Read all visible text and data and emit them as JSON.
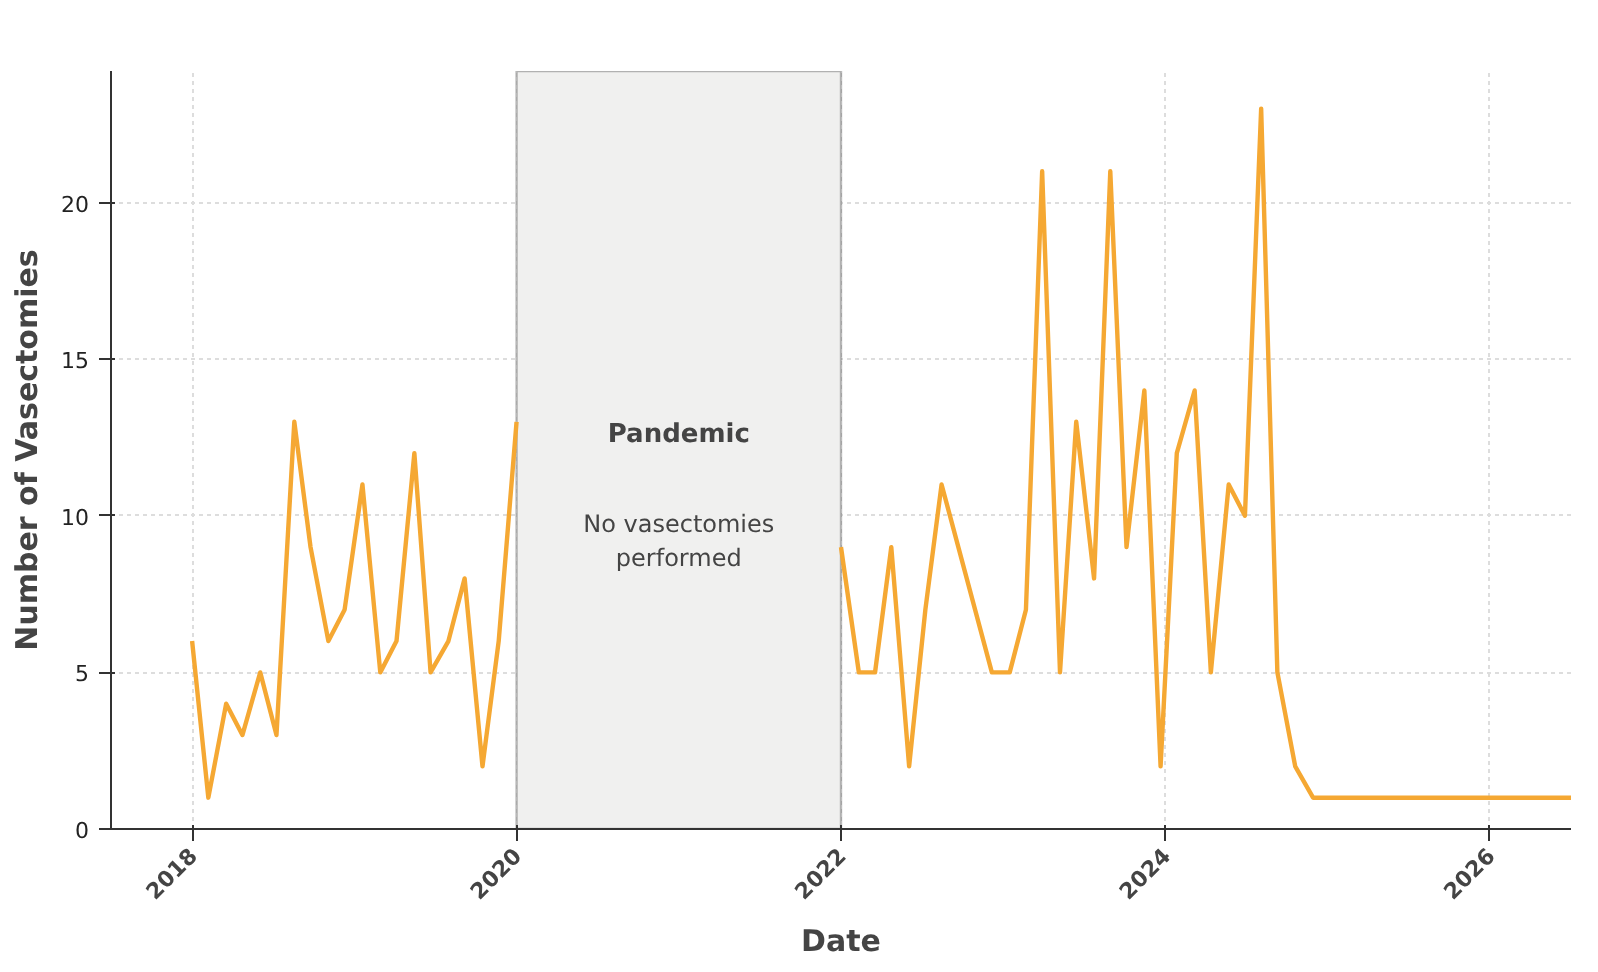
{
  "chart_data": {
    "type": "line",
    "xlabel": "Date",
    "ylabel": "Number of Vasectomies",
    "x": [
      2018.0,
      2018.1,
      2018.21,
      2018.31,
      2018.42,
      2018.52,
      2018.63,
      2018.73,
      2018.84,
      2018.94,
      2019.05,
      2019.16,
      2019.26,
      2019.37,
      2019.47,
      2019.58,
      2019.68,
      2019.79,
      2019.89,
      2020.0,
      2021.0,
      2022.0,
      2022.11,
      2022.21,
      2022.31,
      2022.42,
      2022.52,
      2022.62,
      2022.93,
      2023.04,
      2023.14,
      2023.24,
      2023.35,
      2023.45,
      2023.56,
      2023.66,
      2023.76,
      2023.87,
      2023.97,
      2024.07,
      2024.18,
      2024.28,
      2024.39,
      2024.49,
      2024.59,
      2024.69,
      2024.8,
      2024.91,
      2026.5
    ],
    "series": [
      {
        "color": "#f5a833",
        "values": [
          6,
          1,
          4,
          3,
          5,
          3,
          13,
          9,
          6,
          7,
          11,
          5,
          6,
          12,
          5,
          6,
          8,
          2,
          6,
          13,
          null,
          9,
          5,
          5,
          9,
          2,
          7,
          11,
          5,
          5,
          7,
          21,
          5,
          13,
          8,
          21,
          9,
          14,
          2,
          12,
          14,
          5,
          11,
          10,
          23,
          5,
          2,
          1,
          1
        ]
      }
    ],
    "xlim": [
      2017.5,
      2026.5
    ],
    "xticks": [
      2018,
      2020,
      2022,
      2024,
      2026
    ],
    "ylim": [
      0,
      24.2
    ],
    "yticks": [
      0,
      5,
      10,
      15,
      20
    ],
    "bands": [
      {
        "axis": "x",
        "from": 2020,
        "to": 2022,
        "label": "Pandemic",
        "color": "#f0f0ef"
      }
    ],
    "annotations": [
      "No vasectomies performed"
    ],
    "grid": true,
    "marker": "none",
    "line_style": "solid"
  }
}
